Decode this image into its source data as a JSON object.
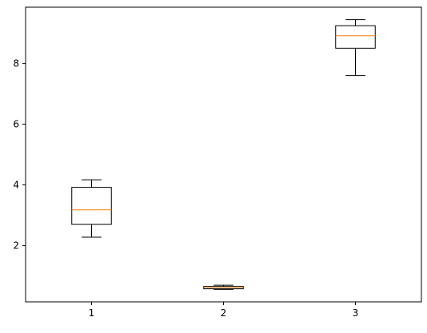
{
  "chart_data": {
    "type": "box",
    "title": "",
    "xlabel": "",
    "ylabel": "",
    "categories": [
      "1",
      "2",
      "3"
    ],
    "boxes": [
      {
        "whislo": 2.28,
        "q1": 2.7,
        "med": 3.18,
        "q3": 3.92,
        "whishi": 4.17
      },
      {
        "whislo": 0.56,
        "q1": 0.58,
        "med": 0.62,
        "q3": 0.66,
        "whishi": 0.7
      },
      {
        "whislo": 7.6,
        "q1": 8.5,
        "med": 8.91,
        "q3": 9.24,
        "whishi": 9.44
      }
    ],
    "ylim": [
      0.15,
      9.85
    ],
    "yticks": [
      2,
      4,
      6,
      8
    ],
    "ytick_labels": [
      "2",
      "4",
      "6",
      "8"
    ],
    "grid": false,
    "box_color": "#000000",
    "median_color": "#ff7f0e"
  }
}
